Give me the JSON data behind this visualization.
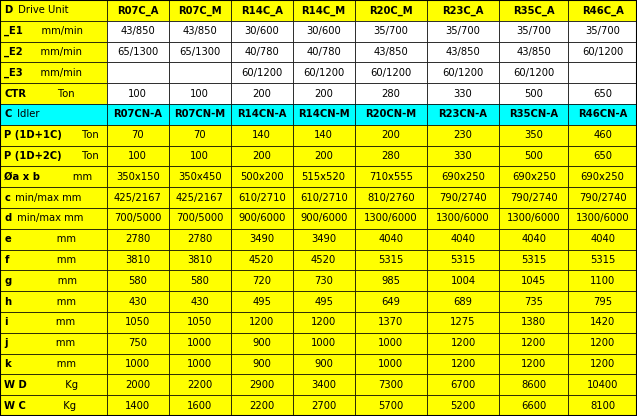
{
  "col_headers": [
    "D Drive Unit",
    "R07C_A",
    "R07C_M",
    "R14C_A",
    "R14C_M",
    "R20C_M",
    "R23C_A",
    "R35C_A",
    "R46C_A"
  ],
  "idler_headers": [
    "C Idler",
    "R07CN-A",
    "R07CN-M",
    "R14CN-A",
    "R14CN-M",
    "R20CN-M",
    "R23CN-A",
    "R35CN-A",
    "R46CN-A"
  ],
  "rows": [
    {
      "label_bold": "_E1",
      "label_rest": "    mm/min",
      "data": [
        "43/850",
        "43/850",
        "30/600",
        "30/600",
        "35/700",
        "35/700",
        "35/700",
        "35/700"
      ],
      "data_bold": false
    },
    {
      "label_bold": "_E2",
      "label_rest": "    mm/min",
      "data": [
        "65/1300",
        "65/1300",
        "40/780",
        "40/780",
        "43/850",
        "43/850",
        "43/850",
        "60/1200"
      ],
      "data_bold": false
    },
    {
      "label_bold": "_E3",
      "label_rest": "    mm/min",
      "data": [
        "",
        "",
        "60/1200",
        "60/1200",
        "60/1200",
        "60/1200",
        "60/1200",
        ""
      ],
      "data_bold": false
    },
    {
      "label_bold": "CTR",
      "label_rest": "        Ton",
      "data": [
        "100",
        "100",
        "200",
        "200",
        "280",
        "330",
        "500",
        "650"
      ],
      "data_bold": false
    },
    {
      "label_bold": "P (1D+1C)",
      "label_rest": " Ton",
      "data": [
        "70",
        "70",
        "140",
        "140",
        "200",
        "230",
        "350",
        "460"
      ],
      "data_bold": false
    },
    {
      "label_bold": "P (1D+2C)",
      "label_rest": " Ton",
      "data": [
        "100",
        "100",
        "200",
        "200",
        "280",
        "330",
        "500",
        "650"
      ],
      "data_bold": false
    },
    {
      "label_bold": "Øa x b",
      "label_rest": "       mm",
      "data": [
        "350x150",
        "350x450",
        "500x200",
        "515x520",
        "710x555",
        "690x250",
        "690x250",
        "690x250"
      ],
      "data_bold": false
    },
    {
      "label_bold": "c",
      "label_rest": " min/max mm",
      "data": [
        "425/2167",
        "425/2167",
        "610/2710",
        "610/2710",
        "810/2760",
        "790/2740",
        "790/2740",
        "790/2740"
      ],
      "data_bold": false
    },
    {
      "label_bold": "d",
      "label_rest": " min/max mm",
      "data": [
        "700/5000",
        "700/5000",
        "900/6000",
        "900/6000",
        "1300/6000",
        "1300/6000",
        "1300/6000",
        "1300/6000"
      ],
      "data_bold": false
    },
    {
      "label_bold": "e",
      "label_rest": "              mm",
      "data": [
        "2780",
        "2780",
        "3490",
        "3490",
        "4040",
        "4040",
        "4040",
        "4040"
      ],
      "data_bold": false
    },
    {
      "label_bold": "f",
      "label_rest": "               mm",
      "data": [
        "3810",
        "3810",
        "4520",
        "4520",
        "5315",
        "5315",
        "5315",
        "5315"
      ],
      "data_bold": false
    },
    {
      "label_bold": "g",
      "label_rest": "              mm",
      "data": [
        "580",
        "580",
        "720",
        "730",
        "985",
        "1004",
        "1045",
        "1100"
      ],
      "data_bold": false
    },
    {
      "label_bold": "h",
      "label_rest": "              mm",
      "data": [
        "430",
        "430",
        "495",
        "495",
        "649",
        "689",
        "735",
        "795"
      ],
      "data_bold": false
    },
    {
      "label_bold": "i",
      "label_rest": "               mm",
      "data": [
        "1050",
        "1050",
        "1200",
        "1200",
        "1370",
        "1275",
        "1380",
        "1420"
      ],
      "data_bold": false
    },
    {
      "label_bold": "j",
      "label_rest": "               mm",
      "data": [
        "750",
        "1000",
        "900",
        "1000",
        "1000",
        "1200",
        "1200",
        "1200"
      ],
      "data_bold": false
    },
    {
      "label_bold": "k",
      "label_rest": "              mm",
      "data": [
        "1000",
        "1000",
        "900",
        "900",
        "1000",
        "1200",
        "1200",
        "1200"
      ],
      "data_bold": false
    },
    {
      "label_bold": "W D",
      "label_rest": "          Kg",
      "data": [
        "2000",
        "2200",
        "2900",
        "3400",
        "7300",
        "6700",
        "8600",
        "10400"
      ],
      "data_bold": false
    },
    {
      "label_bold": "W C",
      "label_rest": "          Kg",
      "data": [
        "1400",
        "1600",
        "2200",
        "2700",
        "5700",
        "5200",
        "6600",
        "8100"
      ],
      "data_bold": false
    }
  ],
  "color_yellow": "#FFFF00",
  "color_cyan": "#00FFFF",
  "color_white": "#FFFFFF",
  "color_black": "#000000",
  "col_widths": [
    1.55,
    0.9,
    0.9,
    0.9,
    0.9,
    1.05,
    1.05,
    1.0,
    1.0
  ],
  "fontsize": 7.2,
  "total_display_rows": 20
}
